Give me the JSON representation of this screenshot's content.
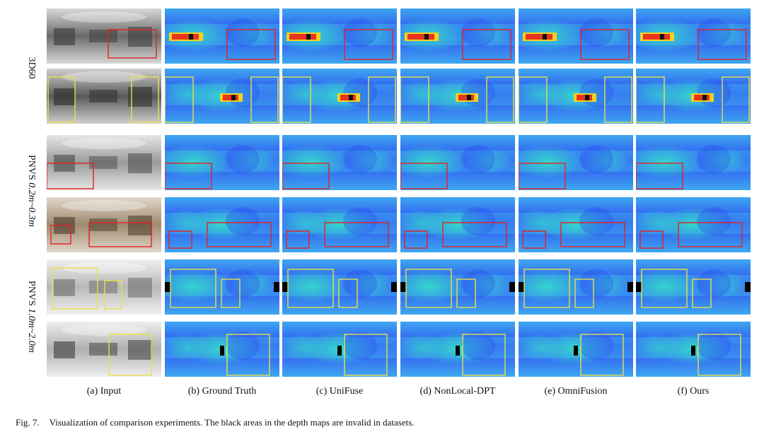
{
  "row_groups": [
    {
      "id": "3d60",
      "label": "3D60",
      "label_italic": ""
    },
    {
      "id": "pnvs-near",
      "label": "PNVS ",
      "label_italic": "0.2m~0.3m"
    },
    {
      "id": "pnvs-far",
      "label": "PNVS ",
      "label_italic": "1.0m~2.0m"
    }
  ],
  "columns": [
    {
      "id": "input",
      "label": "(a) Input"
    },
    {
      "id": "gt",
      "label": "(b) Ground Truth"
    },
    {
      "id": "unifuse",
      "label": "(c) UniFuse"
    },
    {
      "id": "nonlocal",
      "label": "(d) NonLocal-DPT"
    },
    {
      "id": "omnifusion",
      "label": "(e) OmniFusion"
    },
    {
      "id": "ours",
      "label": "(f) Ours"
    }
  ],
  "caption": {
    "figure": "Fig. 7.",
    "text": "Visualization of comparison experiments. The black areas in the depth maps are invalid in datasets."
  },
  "colors": {
    "depth_far": "#2b4cf0",
    "depth_mid": "#3fa7f0",
    "depth_near": "#34e0c8",
    "depth_hot": "#e8341c",
    "box_red": "#e32222",
    "box_yellow": "#e8e04a"
  }
}
